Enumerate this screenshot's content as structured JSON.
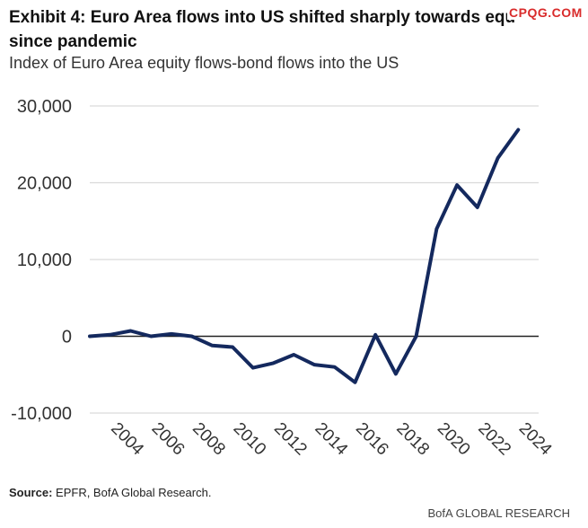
{
  "header": {
    "title": "Exhibit 4: Euro Area flows into US shifted sharply towards equ… since pandemic",
    "title_line1": "Exhibit 4: Euro Area flows into US shifted sharply towards equ",
    "title_line2": "since pandemic",
    "subtitle": "Index of Euro Area equity flows-bond flows into the US",
    "watermark": "CPQG.COM"
  },
  "chart_data": {
    "type": "line",
    "x": [
      2003,
      2004,
      2005,
      2006,
      2007,
      2008,
      2009,
      2010,
      2011,
      2012,
      2013,
      2014,
      2015,
      2016,
      2017,
      2018,
      2019,
      2020,
      2021,
      2022,
      2023,
      2024,
      2025
    ],
    "series": [
      {
        "values": [
          0,
          200,
          700,
          0,
          300,
          0,
          -1200,
          -1400,
          -4100,
          -3500,
          -2400,
          -3700,
          -4000,
          -6000,
          200,
          -4900,
          0,
          14000,
          19700,
          16800,
          23200,
          26900,
          null
        ]
      }
    ],
    "x_tick_labels": [
      "2004",
      "2006",
      "2008",
      "2010",
      "2012",
      "2014",
      "2016",
      "2018",
      "2020",
      "2022",
      "2024"
    ],
    "x_ticks": [
      2004,
      2006,
      2008,
      2010,
      2012,
      2014,
      2016,
      2018,
      2020,
      2022,
      2024
    ],
    "y_ticks": [
      -10000,
      0,
      10000,
      20000,
      30000
    ],
    "y_tick_labels": [
      "-10,000",
      "0",
      "10,000",
      "20,000",
      "30,000"
    ],
    "ylim": [
      -10000,
      30000
    ],
    "xlim": [
      2003,
      2025
    ],
    "grid": true,
    "xlabel": "",
    "ylabel": "",
    "colors": {
      "line": "#14295e",
      "grid": "#d9d9d9",
      "zero_line": "#222222"
    }
  },
  "source": {
    "label": "Source:",
    "text": "EPFR, BofA Global Research."
  },
  "footer": {
    "brand": "BofA GLOBAL RESEARCH"
  }
}
